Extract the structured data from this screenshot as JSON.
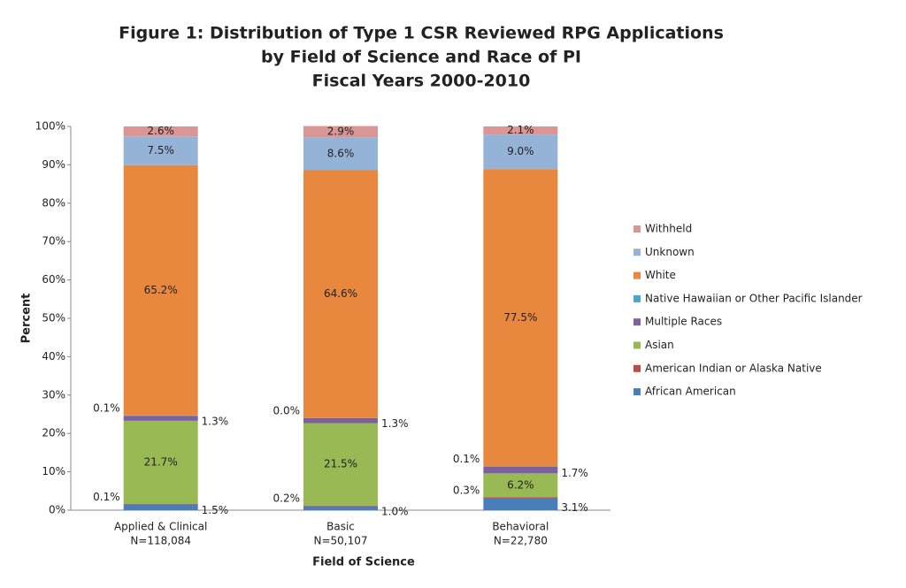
{
  "chart_data": {
    "type": "stacked_bar",
    "title": [
      "Figure 1: Distribution of Type 1 CSR Reviewed RPG Applications",
      "by Field of Science and Race of PI",
      "Fiscal Years 2000-2010"
    ],
    "x_label": "Field of Science",
    "y_label": "Percent",
    "categories": [
      "Applied & Clinical",
      "Basic",
      "Behavioral"
    ],
    "category_counts": [
      "N=118,084",
      "N=50,107",
      "N=22,780"
    ],
    "ylim": [
      0,
      100
    ],
    "yticks": [
      {
        "value": 0,
        "label": "0%"
      },
      {
        "value": 10,
        "label": "10%"
      },
      {
        "value": 20,
        "label": "20%"
      },
      {
        "value": 30,
        "label": "30%"
      },
      {
        "value": 40,
        "label": "40%"
      },
      {
        "value": 50,
        "label": "50%"
      },
      {
        "value": 60,
        "label": "60%"
      },
      {
        "value": 70,
        "label": "70%"
      },
      {
        "value": 80,
        "label": "80%"
      },
      {
        "value": 90,
        "label": "90%"
      },
      {
        "value": 100,
        "label": "100%"
      }
    ],
    "legend": "right",
    "series": [
      {
        "name": "African American",
        "color": "#4a7ebb",
        "values": [
          1.5,
          1.0,
          3.1
        ],
        "value_labels": [
          "1.5%",
          "1.0%",
          "3.1%"
        ]
      },
      {
        "name": "American Indian or Alaska Native",
        "color": "#be4b48",
        "values": [
          0.1,
          0.2,
          0.3
        ],
        "value_labels": [
          "0.1%",
          "0.2%",
          "0.3%"
        ]
      },
      {
        "name": "Asian",
        "color": "#98b954",
        "values": [
          21.7,
          21.5,
          6.2
        ],
        "value_labels": [
          "21.7%",
          "21.5%",
          "6.2%"
        ]
      },
      {
        "name": "Multiple Races",
        "color": "#7d60a0",
        "values": [
          1.3,
          1.3,
          1.7
        ],
        "value_labels": [
          "1.3%",
          "1.3%",
          "1.7%"
        ]
      },
      {
        "name": "Native Hawaiian or Other Pacific Islander",
        "color": "#46aac5",
        "values": [
          0.1,
          0.0,
          0.1
        ],
        "value_labels": [
          "0.1%",
          "0.0%",
          "0.1%"
        ]
      },
      {
        "name": "White",
        "color": "#e8873e",
        "values": [
          65.2,
          64.6,
          77.5
        ],
        "value_labels": [
          "65.2%",
          "64.6%",
          "77.5%"
        ]
      },
      {
        "name": "Unknown",
        "color": "#95b3d7",
        "values": [
          7.5,
          8.6,
          9.0
        ],
        "value_labels": [
          "7.5%",
          "8.6%",
          "9.0%"
        ]
      },
      {
        "name": "Withheld",
        "color": "#d99694",
        "values": [
          2.6,
          2.9,
          2.1
        ],
        "value_labels": [
          "2.6%",
          "2.9%",
          "2.1%"
        ]
      }
    ]
  }
}
